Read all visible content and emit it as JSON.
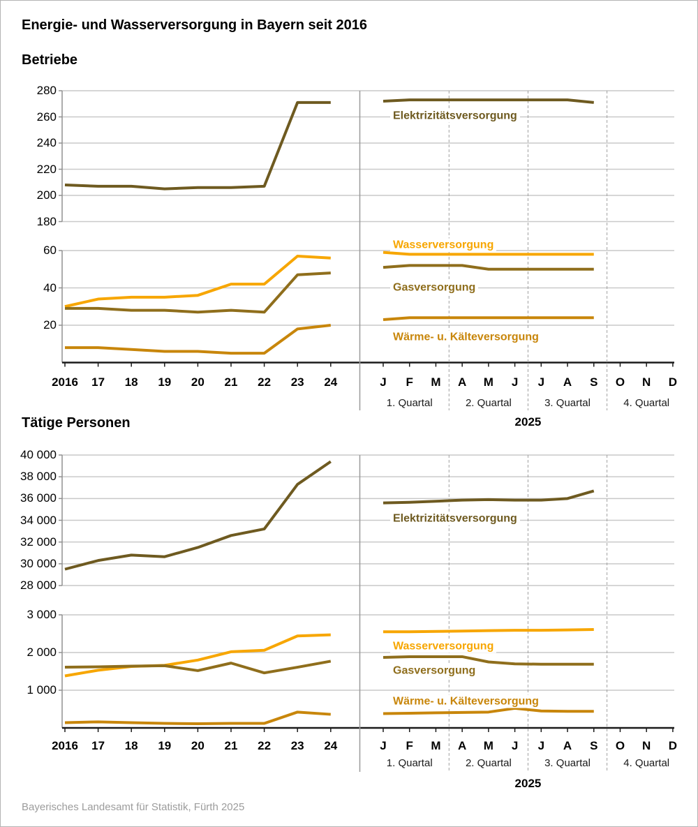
{
  "page": {
    "title": "Energie- und Wasserversorgung in Bayern seit 2016",
    "footer": "Bayerisches Landesamt für Statistik, Fürth 2025"
  },
  "sections": [
    {
      "heading": "Betriebe"
    },
    {
      "heading": "Tätige Personen"
    }
  ],
  "colors": {
    "elektrizitaet": "#6E5A20",
    "wasser": "#F7A600",
    "gas": "#8F6E1C",
    "waerme": "#C8860B",
    "grid": "#C9C9C9",
    "axis_zero": "#1A1A1A",
    "axis_y": "#909090",
    "divider": "#9A9A9A",
    "quarter_dash": "#A0A0A0",
    "footer_text": "#9C9C9C"
  },
  "axis_labels": {
    "years": [
      "2016",
      "17",
      "18",
      "19",
      "20",
      "21",
      "22",
      "23",
      "24"
    ],
    "months": [
      "J",
      "F",
      "M",
      "A",
      "M",
      "J",
      "J",
      "A",
      "S",
      "O",
      "N",
      "D"
    ],
    "quarters": [
      "1. Quartal",
      "2. Quartal",
      "3. Quartal",
      "4. Quartal"
    ],
    "monthly_year": "2025"
  },
  "chart_data": [
    {
      "id": "betriebe-elektrizitaet",
      "type": "line",
      "section": "Betriebe",
      "grid": true,
      "ylim": [
        180,
        280
      ],
      "yticks": [
        {
          "v": 180,
          "label": "180"
        },
        {
          "v": 200,
          "label": "200"
        },
        {
          "v": 220,
          "label": "220"
        },
        {
          "v": 240,
          "label": "240"
        },
        {
          "v": 260,
          "label": "260"
        },
        {
          "v": 280,
          "label": "280"
        }
      ],
      "x_annual_years": [
        2016,
        2017,
        2018,
        2019,
        2020,
        2021,
        2022,
        2023,
        2024
      ],
      "monthly_coverage": "Jan–Sep 2025",
      "series": [
        {
          "name": "Elektrizitätsversorgung",
          "color": "elektrizitaet",
          "annual": [
            208,
            207,
            207,
            205,
            206,
            206,
            207,
            271,
            271
          ],
          "monthly_2025": [
            272,
            273,
            273,
            273,
            273,
            273,
            273,
            273,
            271
          ]
        }
      ]
    },
    {
      "id": "betriebe-wasser-gas-waerme",
      "type": "line",
      "section": "Betriebe",
      "grid": true,
      "ylim": [
        0,
        60
      ],
      "yticks": [
        {
          "v": 0,
          "label": "0"
        },
        {
          "v": 20,
          "label": "20"
        },
        {
          "v": 40,
          "label": "40"
        },
        {
          "v": 60,
          "label": "60"
        }
      ],
      "x_annual_years": [
        2016,
        2017,
        2018,
        2019,
        2020,
        2021,
        2022,
        2023,
        2024
      ],
      "monthly_coverage": "Jan–Sep 2025",
      "series": [
        {
          "name": "Wasserversorgung",
          "color": "wasser",
          "annual": [
            30,
            34,
            35,
            35,
            36,
            42,
            42,
            57,
            56
          ],
          "monthly_2025": [
            59,
            58,
            58,
            58,
            58,
            58,
            58,
            58,
            58
          ]
        },
        {
          "name": "Gasversorgung",
          "color": "gas",
          "annual": [
            29,
            29,
            28,
            28,
            27,
            28,
            27,
            47,
            48
          ],
          "monthly_2025": [
            51,
            52,
            52,
            52,
            50,
            50,
            50,
            50,
            50
          ]
        },
        {
          "name": "Wärme- u. Kälteversorgung",
          "color": "waerme",
          "annual": [
            8,
            8,
            7,
            6,
            6,
            5,
            5,
            18,
            20
          ],
          "monthly_2025": [
            23,
            24,
            24,
            24,
            24,
            24,
            24,
            24,
            24
          ]
        }
      ]
    },
    {
      "id": "personen-elektrizitaet",
      "type": "line",
      "section": "Tätige Personen",
      "grid": true,
      "ylim": [
        28000,
        40000
      ],
      "yticks": [
        {
          "v": 28000,
          "label": "28 000"
        },
        {
          "v": 30000,
          "label": "30 000"
        },
        {
          "v": 32000,
          "label": "32 000"
        },
        {
          "v": 34000,
          "label": "34 000"
        },
        {
          "v": 36000,
          "label": "36 000"
        },
        {
          "v": 38000,
          "label": "38 000"
        },
        {
          "v": 40000,
          "label": "40 000"
        }
      ],
      "x_annual_years": [
        2016,
        2017,
        2018,
        2019,
        2020,
        2021,
        2022,
        2023,
        2024
      ],
      "monthly_coverage": "Jan–Sep 2025",
      "series": [
        {
          "name": "Elektrizitätsversorgung",
          "color": "elektrizitaet",
          "annual": [
            29500,
            30300,
            30800,
            30650,
            31500,
            32600,
            33200,
            37300,
            39400
          ],
          "monthly_2025": [
            35600,
            35650,
            35750,
            35850,
            35900,
            35850,
            35850,
            36000,
            36700
          ]
        }
      ]
    },
    {
      "id": "personen-wasser-gas-waerme",
      "type": "line",
      "section": "Tätige Personen",
      "grid": true,
      "ylim": [
        0,
        3000
      ],
      "yticks": [
        {
          "v": 0,
          "label": "0"
        },
        {
          "v": 1000,
          "label": "1 000"
        },
        {
          "v": 2000,
          "label": "2 000"
        },
        {
          "v": 3000,
          "label": "3 000"
        }
      ],
      "x_annual_years": [
        2016,
        2017,
        2018,
        2019,
        2020,
        2021,
        2022,
        2023,
        2024
      ],
      "monthly_coverage": "Jan–Sep 2025",
      "series": [
        {
          "name": "Wasserversorgung",
          "color": "wasser",
          "annual": [
            1380,
            1530,
            1630,
            1660,
            1800,
            2020,
            2060,
            2440,
            2470
          ],
          "monthly_2025": [
            2550,
            2550,
            2560,
            2570,
            2580,
            2590,
            2590,
            2600,
            2610
          ]
        },
        {
          "name": "Gasversorgung",
          "color": "gas",
          "annual": [
            1610,
            1620,
            1640,
            1650,
            1520,
            1720,
            1460,
            1610,
            1770
          ],
          "monthly_2025": [
            1870,
            1890,
            1890,
            1890,
            1750,
            1700,
            1690,
            1690,
            1690
          ]
        },
        {
          "name": "Wärme- u. Kälteversorgung",
          "color": "waerme",
          "annual": [
            140,
            160,
            140,
            120,
            110,
            120,
            120,
            420,
            360
          ],
          "monthly_2025": [
            380,
            390,
            400,
            410,
            420,
            520,
            450,
            440,
            440
          ]
        }
      ]
    }
  ]
}
